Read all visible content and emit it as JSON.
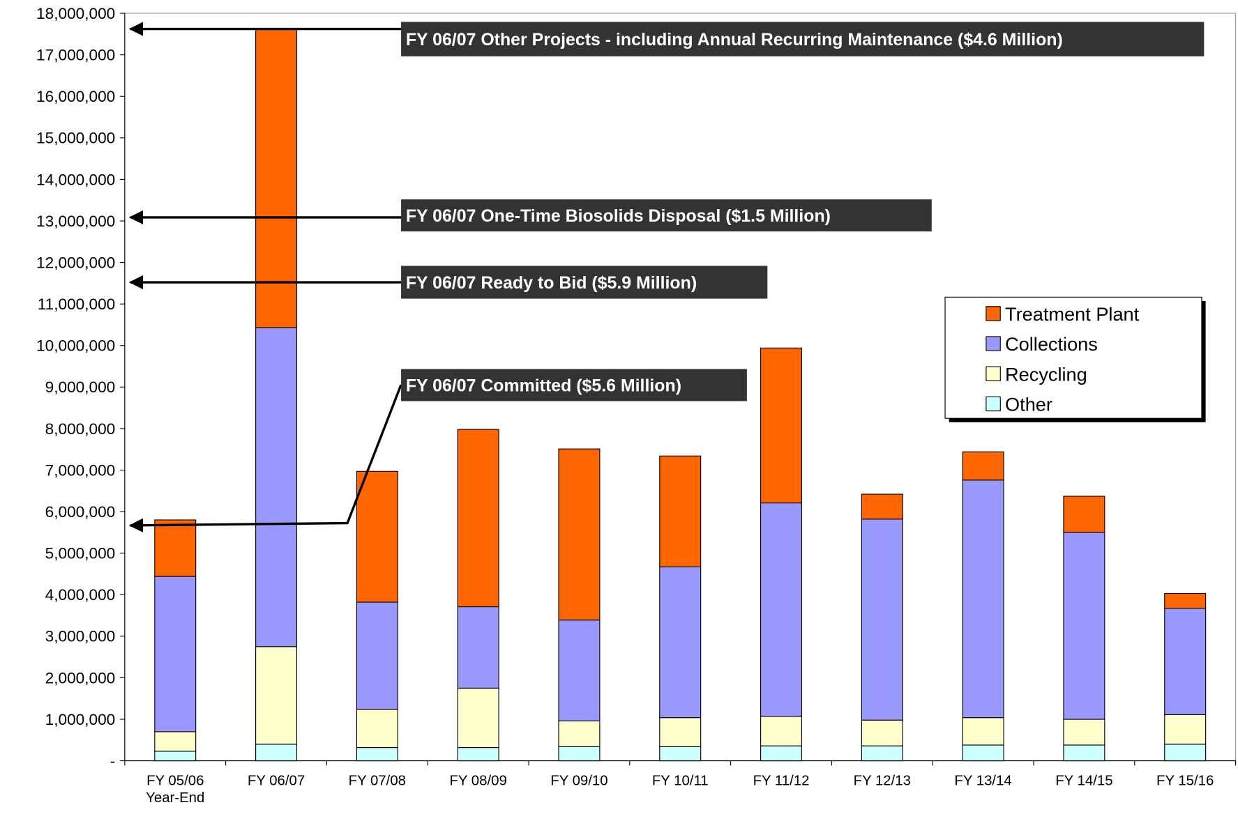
{
  "chart_data": {
    "type": "stacked_bar",
    "categories": [
      "FY 05/06 Year-End",
      "FY 06/07",
      "FY 07/08",
      "FY 08/09",
      "FY 09/10",
      "FY 10/11",
      "FY 11/12",
      "FY 12/13",
      "FY 13/14",
      "FY 14/15",
      "FY 15/16"
    ],
    "series": [
      {
        "name": "Other",
        "color": "#ccffff",
        "values": [
          230000,
          400000,
          320000,
          320000,
          340000,
          340000,
          360000,
          360000,
          380000,
          380000,
          400000
        ]
      },
      {
        "name": "Recycling",
        "color": "#ffffcc",
        "values": [
          470000,
          2350000,
          920000,
          1430000,
          620000,
          700000,
          710000,
          620000,
          660000,
          620000,
          710000
        ]
      },
      {
        "name": "Collections",
        "color": "#9999ff",
        "values": [
          3740000,
          7680000,
          2580000,
          1960000,
          2430000,
          3630000,
          5140000,
          4840000,
          5720000,
          4500000,
          2560000
        ]
      },
      {
        "name": "Treatment Plant",
        "color": "#ff6600",
        "values": [
          1360000,
          7200000,
          3150000,
          4270000,
          4120000,
          2670000,
          3730000,
          600000,
          680000,
          870000,
          360000
        ]
      }
    ],
    "ylim": [
      0,
      18000000
    ],
    "yticks": [
      {
        "value": 0,
        "label": "-"
      },
      {
        "value": 1000000,
        "label": "1,000,000"
      },
      {
        "value": 2000000,
        "label": "2,000,000"
      },
      {
        "value": 3000000,
        "label": "3,000,000"
      },
      {
        "value": 4000000,
        "label": "4,000,000"
      },
      {
        "value": 5000000,
        "label": "5,000,000"
      },
      {
        "value": 6000000,
        "label": "6,000,000"
      },
      {
        "value": 7000000,
        "label": "7,000,000"
      },
      {
        "value": 8000000,
        "label": "8,000,000"
      },
      {
        "value": 9000000,
        "label": "9,000,000"
      },
      {
        "value": 10000000,
        "label": "10,000,000"
      },
      {
        "value": 11000000,
        "label": "11,000,000"
      },
      {
        "value": 12000000,
        "label": "12,000,000"
      },
      {
        "value": 13000000,
        "label": "13,000,000"
      },
      {
        "value": 14000000,
        "label": "14,000,000"
      },
      {
        "value": 15000000,
        "label": "15,000,000"
      },
      {
        "value": 16000000,
        "label": "16,000,000"
      },
      {
        "value": 17000000,
        "label": "17,000,000"
      },
      {
        "value": 18000000,
        "label": "18,000,000"
      }
    ],
    "grid": false,
    "legend": "right",
    "annotations": [
      "FY 06/07 Other Projects - including Annual Recurring Maintenance ($4.6 Million)",
      "FY 06/07 One-Time Biosolids Disposal ($1.5 Million)",
      "FY 06/07 Ready to Bid ($5.9 Million)",
      "FY 06/07 Committed ($5.6 Million)"
    ]
  }
}
